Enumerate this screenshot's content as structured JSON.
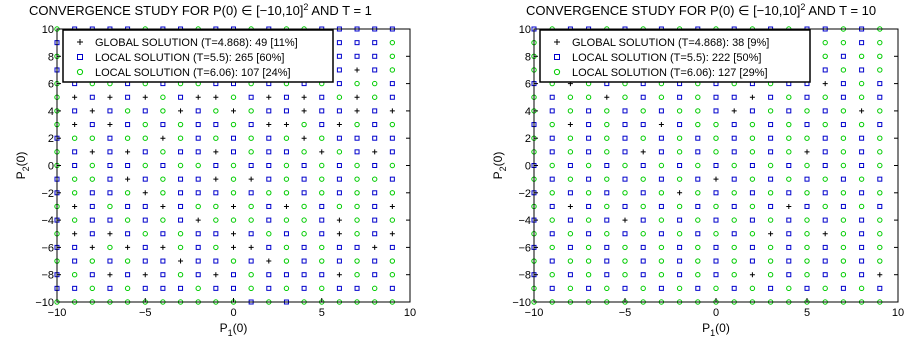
{
  "chart_data": [
    {
      "type": "scatter",
      "title_prefix": "CONVERGENCE STUDY FOR P(0)",
      "title_mid": " [−10,10]",
      "title_sup": "2",
      "title_suffix": " AND T = 1",
      "xlabel_main": "P",
      "xlabel_sub": "1",
      "xlabel_tail": "(0)",
      "ylabel_main": "P",
      "ylabel_sub": "2",
      "ylabel_tail": "(0)",
      "xlim": [
        -10,
        10
      ],
      "ylim": [
        -10,
        10
      ],
      "xticks": [
        "-10",
        "-5",
        "0",
        "5",
        "10"
      ],
      "yticks": [
        "-10",
        "-8",
        "-6",
        "-4",
        "-2",
        "0",
        "2",
        "4",
        "6",
        "8",
        "10"
      ],
      "legend_position": "top",
      "grid": false,
      "series": [
        {
          "name": "GLOBAL SOLUTION (T=4.868): 49 [11%]",
          "marker": "plus",
          "color": "#000000"
        },
        {
          "name": "LOCAL SOLUTION (T=5.5): 265 [60%]",
          "marker": "square",
          "color": "#0000cc"
        },
        {
          "name": "LOCAL SOLUTION (T=6.06): 107 [24%]",
          "marker": "circle",
          "color": "#00cc00"
        }
      ],
      "grid_rows": [
        "gssssgssgssgsggsssss",
        "sgsssggsgsgsgsgssssg",
        "gggsssgsssgsgssgsssg",
        "sgsssgssggssgsgsspsg",
        "gsggsgsggssgsgsgsggs",
        "gpspspgsppgspspsgpgs",
        "gspsgsgpsgpgsspsspsp",
        "gpspsgsgssgsppgspgsg",
        "sggsggpgsgsgsgpgssss",
        "gspspsgsspsgssgpgsps",
        "gsgssgsggsgssgsgsgsg",
        "sggspsgsspgpsgsgsggs",
        "sgssgpgsssgsggsgsgsg",
        "gpsgsspsggpgspgsggsp",
        "sgssgsgspgggsggspgsg",
        "gpspsgsgsspsgsgspgsp",
        "sspgpspgsgppsgsgssps",
        "gsgsgsspssgspgsgsgsg",
        "sgspspsgspsgsssspgsg",
        "ssgsgsssgssgsgsgssgs",
        "gggggggggggsgsgggggg"
      ]
    },
    {
      "type": "scatter",
      "title_prefix": "CONVERGENCE STUDY FOR P(0)",
      "title_mid": " [−10,10]",
      "title_sup": "2",
      "title_suffix": " AND T = 10",
      "xlabel_main": "P",
      "xlabel_sub": "1",
      "xlabel_tail": "(0)",
      "ylabel_main": "P",
      "ylabel_sub": "2",
      "ylabel_tail": "(0)",
      "xlim": [
        -10,
        10
      ],
      "ylim": [
        -10,
        10
      ],
      "xticks": [
        "-10",
        "-5",
        "0",
        "5",
        "10"
      ],
      "yticks": [
        "-10",
        "-8",
        "-6",
        "-4",
        "-2",
        "0",
        "2",
        "4",
        "6",
        "8",
        "10"
      ],
      "legend_position": "top",
      "grid": false,
      "series": [
        {
          "name": "GLOBAL SOLUTION (T=4.868): 38 [9%]",
          "marker": "plus",
          "color": "#000000"
        },
        {
          "name": "LOCAL SOLUTION (T=5.5): 222 [50%]",
          "marker": "square",
          "color": "#0000cc"
        },
        {
          "name": "LOCAL SOLUTION (T=6.06): 127 [29%]",
          "marker": "circle",
          "color": "#00cc00"
        }
      ],
      "grid_rows": [
        "sgssgsgsgsgsgsgssgsg",
        "gsggsgsgsggsgsgsggsg",
        "ggsggsgsgsgsgggsgsgg",
        "gspsgsgpsgsgpgsgsgsg",
        "sgpgsgsgsgsgsgsspsgs",
        "gsggpgsgsgsspsgsgsgs",
        "gsgsgsgsggspsgsgsgpg",
        "sgpsgsspsggsgsgsgsgs",
        "gsgsgsgsgsgsgsggsgsg",
        "gsgsgspsgsgsgsgpsgsg",
        "sgsgsgsgsgsgsgsgsgsg",
        "gsgsgsgsgspsgsgsgsgs",
        "sgsgsgsgpgsgsgsgsgsg",
        "gspsgsgsgsgsgspsgsgs",
        "sgsgspsgsgsgsgsgsgsg",
        "gsgsgsgsgsgsgpsgpgsg",
        "sgsgsgsgsgsgsgsgsgsg",
        "gsggsgsgsgsgsgsgsgsg",
        "sgsgsgsgsgsgpgsgsgsp",
        "gsgsgsgsgsgsgsgsgsgs",
        "gggggggggggggggggggg"
      ]
    }
  ]
}
